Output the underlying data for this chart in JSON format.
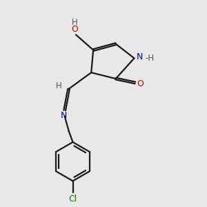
{
  "background_color": "#e8e8e8",
  "bond_color": "#1a1a1a",
  "n_color": "#0000cc",
  "o_color": "#cc0000",
  "cl_color": "#008800",
  "h_color": "#555555",
  "line_width": 1.6,
  "figsize": [
    3.0,
    3.0
  ],
  "dpi": 100,
  "xlim": [
    0,
    10
  ],
  "ylim": [
    0,
    10
  ]
}
